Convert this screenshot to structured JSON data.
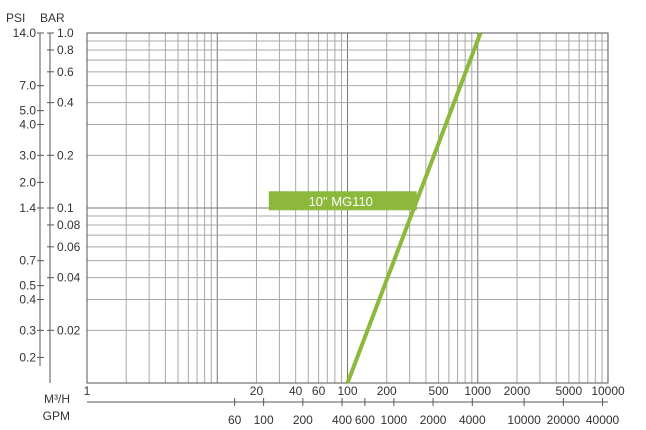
{
  "chart_data": {
    "type": "line",
    "title": "",
    "units": {
      "psi": "PSI",
      "bar": "BAR",
      "m3h": "M³/H",
      "gpm": "GPM"
    },
    "x_scale": "log",
    "y_scale": "log",
    "xlim_m3h": [
      1,
      10000
    ],
    "ylim_bar": [
      0.01,
      1.0
    ],
    "grid": true,
    "psi_ticks": [
      {
        "label": "14.0",
        "bar": 1.0
      },
      {
        "label": "7.0",
        "bar": 0.5
      },
      {
        "label": "5.0",
        "bar": 0.36
      },
      {
        "label": "4.0",
        "bar": 0.3
      },
      {
        "label": "3.0",
        "bar": 0.2
      },
      {
        "label": "2.0",
        "bar": 0.14
      },
      {
        "label": "1.4",
        "bar": 0.1
      },
      {
        "label": "0.7",
        "bar": 0.05
      },
      {
        "label": "0.5",
        "bar": 0.036
      },
      {
        "label": "0.4",
        "bar": 0.03
      },
      {
        "label": "0.3",
        "bar": 0.02
      },
      {
        "label": "0.2",
        "bar": 0.014
      }
    ],
    "bar_ticks": [
      {
        "label": "1.0",
        "bar": 1.0
      },
      {
        "label": "0.8",
        "bar": 0.8
      },
      {
        "label": "0.6",
        "bar": 0.6
      },
      {
        "label": "0.4",
        "bar": 0.4
      },
      {
        "label": "0.2",
        "bar": 0.2
      },
      {
        "label": "0.1",
        "bar": 0.1
      },
      {
        "label": "0.08",
        "bar": 0.08
      },
      {
        "label": "0.06",
        "bar": 0.06
      },
      {
        "label": "0.04",
        "bar": 0.04
      },
      {
        "label": "0.02",
        "bar": 0.02
      }
    ],
    "m3h_ticks": [
      {
        "label": "1",
        "value": 1
      },
      {
        "label": "20",
        "value": 20
      },
      {
        "label": "40",
        "value": 40
      },
      {
        "label": "60",
        "value": 60
      },
      {
        "label": "100",
        "value": 100
      },
      {
        "label": "200",
        "value": 200
      },
      {
        "label": "500",
        "value": 500
      },
      {
        "label": "1000",
        "value": 1000
      },
      {
        "label": "2000",
        "value": 2000
      },
      {
        "label": "5000",
        "value": 5000
      },
      {
        "label": "10000",
        "value": 10000
      }
    ],
    "gpm_ticks": [
      {
        "label": "60",
        "m3h": 13.6
      },
      {
        "label": "100",
        "m3h": 22.7
      },
      {
        "label": "200",
        "m3h": 45.4
      },
      {
        "label": "400",
        "m3h": 90.8
      },
      {
        "label": "600",
        "m3h": 136
      },
      {
        "label": "1000",
        "m3h": 227
      },
      {
        "label": "2000",
        "m3h": 454
      },
      {
        "label": "4000",
        "m3h": 908
      },
      {
        "label": "10000",
        "m3h": 2270
      },
      {
        "label": "20000",
        "m3h": 4540
      },
      {
        "label": "40000",
        "m3h": 9080
      }
    ],
    "series": [
      {
        "name": "10\" MG110",
        "color": "#8cb83c",
        "points": [
          {
            "x": 100,
            "y": 0.01
          },
          {
            "x": 1050,
            "y": 1.0
          }
        ],
        "label_at": {
          "x": 300,
          "y": 0.11
        }
      }
    ]
  }
}
